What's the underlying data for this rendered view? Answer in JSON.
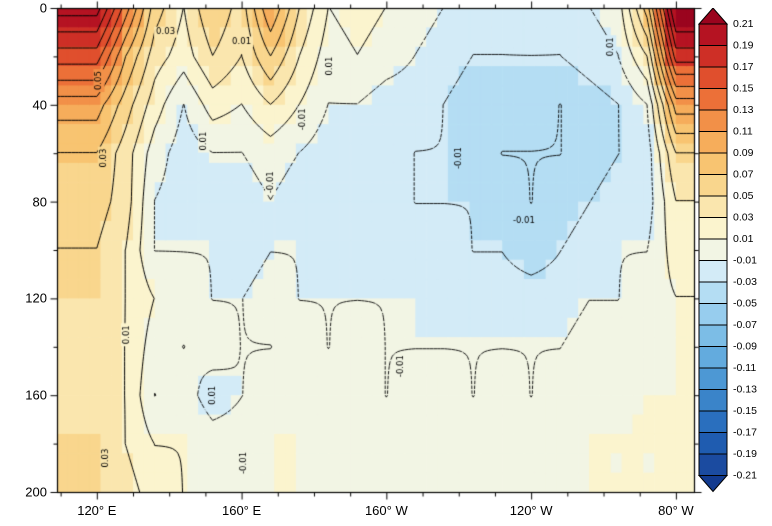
{
  "figure": {
    "background": "#ffffff"
  },
  "axes": {
    "x": {
      "lon_min": 109,
      "lon_max": 285,
      "minor_step": 10,
      "major_step": 40,
      "major_ticks": [
        {
          "lon": 120,
          "label": "120° E"
        },
        {
          "lon": 160,
          "label": "160° E"
        },
        {
          "lon": 200,
          "label": "160° W"
        },
        {
          "lon": 240,
          "label": "120° W"
        },
        {
          "lon": 280,
          "label": "80° W"
        }
      ]
    },
    "y": {
      "depth_min": 0,
      "depth_max": 200,
      "minor_step": 20,
      "major_step": 40,
      "major_ticks": [
        {
          "depth": 0,
          "label": "0"
        },
        {
          "depth": 40,
          "label": "40"
        },
        {
          "depth": 80,
          "label": "80"
        },
        {
          "depth": 120,
          "label": "120"
        },
        {
          "depth": 160,
          "label": "160"
        },
        {
          "depth": 200,
          "label": "200"
        }
      ]
    }
  },
  "colorbar": {
    "labels_top_to_bottom": [
      "0.21",
      "0.19",
      "0.17",
      "0.15",
      "0.13",
      "0.11",
      "0.09",
      "0.07",
      "0.05",
      "0.03",
      "0.01",
      "-0.01",
      "-0.03",
      "-0.05",
      "-0.07",
      "-0.09",
      "-0.11",
      "-0.13",
      "-0.15",
      "-0.17",
      "-0.19",
      "-0.21"
    ],
    "outline_color": "#000000"
  },
  "chart_data": {
    "type": "heatmap",
    "title": "",
    "xlabel": "",
    "ylabel": "",
    "ylim": [
      0,
      200
    ],
    "y_axis_reversed": true,
    "grid": false,
    "legend_position": "right-colorbar",
    "x_lon": [
      120,
      128,
      136,
      144,
      152,
      160,
      168,
      176,
      184,
      192,
      200,
      208,
      216,
      224,
      232,
      240,
      248,
      256,
      264,
      272,
      280
    ],
    "y_depth": [
      0,
      20,
      40,
      60,
      80,
      100,
      120,
      140,
      160,
      180,
      200
    ],
    "values": [
      [
        0.22,
        0.14,
        0.06,
        0.03,
        0.07,
        0.04,
        0.11,
        0.05,
        0.01,
        0.02,
        0.01,
        0.0,
        -0.01,
        -0.02,
        -0.02,
        -0.01,
        -0.02,
        -0.01,
        0.0,
        0.08,
        0.24
      ],
      [
        0.16,
        0.09,
        0.04,
        0.02,
        0.05,
        0.03,
        0.07,
        0.03,
        0.0,
        0.01,
        0.0,
        -0.01,
        -0.02,
        -0.03,
        -0.03,
        -0.03,
        -0.03,
        -0.02,
        -0.01,
        0.03,
        0.18
      ],
      [
        0.1,
        0.06,
        0.02,
        -0.01,
        0.02,
        0.01,
        0.03,
        0.01,
        -0.01,
        -0.01,
        -0.02,
        -0.02,
        -0.03,
        -0.04,
        -0.04,
        -0.04,
        -0.05,
        -0.04,
        -0.03,
        -0.01,
        0.1
      ],
      [
        0.07,
        0.04,
        0.0,
        -0.02,
        -0.01,
        -0.01,
        0.0,
        -0.01,
        -0.02,
        -0.02,
        -0.02,
        -0.03,
        -0.03,
        -0.04,
        -0.05,
        -0.05,
        -0.05,
        -0.04,
        -0.03,
        -0.02,
        0.05
      ],
      [
        0.06,
        0.04,
        -0.01,
        -0.02,
        -0.02,
        -0.02,
        -0.01,
        -0.02,
        -0.02,
        -0.02,
        -0.02,
        -0.03,
        -0.03,
        -0.03,
        -0.04,
        -0.05,
        -0.04,
        -0.03,
        -0.02,
        -0.02,
        0.03
      ],
      [
        0.05,
        0.03,
        -0.01,
        -0.01,
        -0.01,
        -0.02,
        -0.01,
        -0.01,
        -0.02,
        -0.01,
        -0.02,
        -0.02,
        -0.02,
        -0.03,
        -0.03,
        -0.04,
        -0.03,
        -0.02,
        -0.01,
        -0.01,
        0.02
      ],
      [
        0.05,
        0.03,
        0.01,
        0.0,
        -0.01,
        -0.01,
        0.0,
        -0.01,
        -0.01,
        -0.01,
        -0.01,
        -0.01,
        -0.02,
        -0.02,
        -0.02,
        -0.02,
        -0.02,
        -0.01,
        -0.01,
        0.0,
        0.01
      ],
      [
        0.04,
        0.03,
        0.0,
        -0.01,
        0.0,
        -0.01,
        -0.01,
        0.0,
        -0.01,
        0.0,
        -0.01,
        -0.01,
        -0.01,
        -0.01,
        -0.01,
        -0.01,
        -0.01,
        0.0,
        0.0,
        0.0,
        0.01
      ],
      [
        0.04,
        0.03,
        -0.01,
        0.0,
        -0.02,
        -0.01,
        0.0,
        0.0,
        0.0,
        0.0,
        -0.01,
        0.0,
        0.0,
        -0.01,
        0.0,
        -0.01,
        0.0,
        0.0,
        0.01,
        0.01,
        0.01
      ],
      [
        0.05,
        0.03,
        0.01,
        0.01,
        0.0,
        0.0,
        0.01,
        0.01,
        0.0,
        0.01,
        0.0,
        0.0,
        0.01,
        0.0,
        0.0,
        0.0,
        0.0,
        0.01,
        0.01,
        0.01,
        0.01
      ],
      [
        0.05,
        0.04,
        0.02,
        0.01,
        0.01,
        0.01,
        0.01,
        0.01,
        0.01,
        0.01,
        0.01,
        0.01,
        0.01,
        0.0,
        0.01,
        0.0,
        0.01,
        0.01,
        0.01,
        0.01,
        0.01
      ]
    ],
    "level_boundaries": [
      -0.21,
      -0.19,
      -0.17,
      -0.15,
      -0.13,
      -0.11,
      -0.09,
      -0.07,
      -0.05,
      -0.03,
      -0.01,
      0.01,
      0.03,
      0.05,
      0.07,
      0.09,
      0.11,
      0.13,
      0.15,
      0.17,
      0.19,
      0.21
    ],
    "fill_colors_low_to_high": [
      "#123A8F",
      "#1B4BA0",
      "#1F5CB0",
      "#2A6FBE",
      "#3A84C9",
      "#4D98D4",
      "#63ABDE",
      "#7CBDE6",
      "#97CDEE",
      "#B4DDF3",
      "#D3EBF7",
      "#F2F5E4",
      "#FBF4CE",
      "#FAE6AE",
      "#F9D68D",
      "#F8C471",
      "#F6AD5B",
      "#F29048",
      "#EC7038",
      "#E04F2D",
      "#CE2F26",
      "#B51322",
      "#9A041E"
    ],
    "contour_line_style": {
      "positive": "solid",
      "negative": "dashed",
      "color": "#000000"
    },
    "contour_labels": [
      {
        "label": "0.05",
        "lon": 120.6,
        "depth": 30,
        "rot": -90
      },
      {
        "label": "0.03",
        "lon": 121.8,
        "depth": 62,
        "rot": -90
      },
      {
        "label": "0.03",
        "lon": 122.6,
        "depth": 186,
        "rot": -90
      },
      {
        "label": "0.01",
        "lon": 128.2,
        "depth": 135,
        "rot": -90
      },
      {
        "label": "0.03",
        "lon": 139,
        "depth": 10,
        "rot": 0
      },
      {
        "label": "0.01",
        "lon": 149.5,
        "depth": 55,
        "rot": -90
      },
      {
        "label": "0.01",
        "lon": 160,
        "depth": 14,
        "rot": 0
      },
      {
        "label": "-0.01",
        "lon": 168,
        "depth": 72,
        "rot": -90
      },
      {
        "label": "-0.01",
        "lon": 177,
        "depth": 46,
        "rot": -90
      },
      {
        "label": "0.01",
        "lon": 184.5,
        "depth": 24,
        "rot": -90
      },
      {
        "label": "0.01",
        "lon": 152,
        "depth": 160,
        "rot": -90
      },
      {
        "label": "-0.01",
        "lon": 160.5,
        "depth": 188,
        "rot": -90
      },
      {
        "label": "-0.01",
        "lon": 204,
        "depth": 148,
        "rot": -90
      },
      {
        "label": "-0.01",
        "lon": 220,
        "depth": 62,
        "rot": -90
      },
      {
        "label": "-0.01",
        "lon": 238,
        "depth": 88,
        "rot": 0
      },
      {
        "label": "0.01",
        "lon": 262,
        "depth": 16,
        "rot": -90
      }
    ]
  }
}
